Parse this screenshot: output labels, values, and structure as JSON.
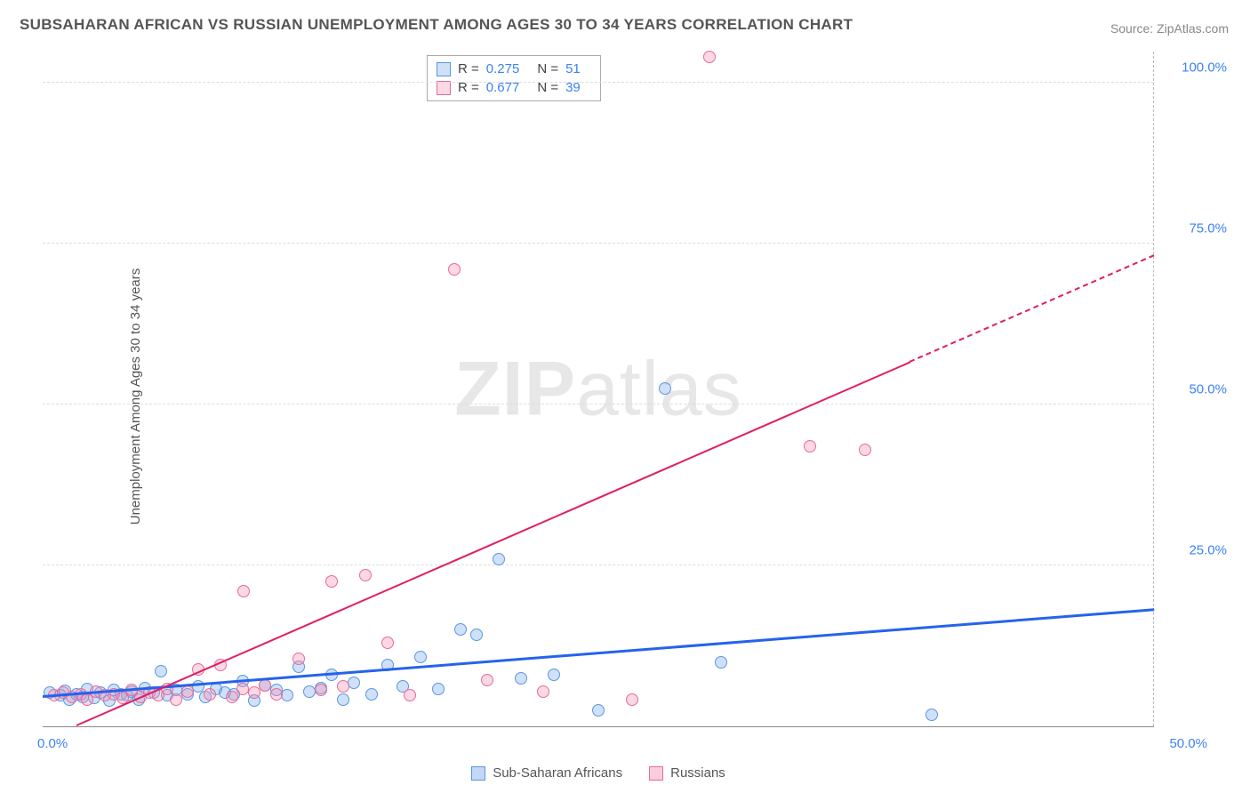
{
  "title": "SUBSAHARAN AFRICAN VS RUSSIAN UNEMPLOYMENT AMONG AGES 30 TO 34 YEARS CORRELATION CHART",
  "source": "Source: ZipAtlas.com",
  "y_axis_label": "Unemployment Among Ages 30 to 34 years",
  "watermark_a": "ZIP",
  "watermark_b": "atlas",
  "chart": {
    "type": "scatter-with-regression",
    "background_color": "#ffffff",
    "grid_color": "#dddddd",
    "axis_label_color": "#3b82f6",
    "xlim": [
      0,
      50
    ],
    "ylim": [
      0,
      105
    ],
    "x_ticks": [
      {
        "value": 0,
        "label": "0.0%"
      },
      {
        "value": 50,
        "label": "50.0%"
      }
    ],
    "y_ticks": [
      {
        "value": 25,
        "label": "25.0%"
      },
      {
        "value": 50,
        "label": "50.0%"
      },
      {
        "value": 75,
        "label": "75.0%"
      },
      {
        "value": 100,
        "label": "100.0%"
      }
    ],
    "series": [
      {
        "name": "Sub-Saharan Africans",
        "color_fill": "rgba(118,169,238,0.35)",
        "color_stroke": "#5a96e0",
        "trend_color": "#2563eb",
        "trend_width": 2.5,
        "trend": {
          "x1": 0,
          "y1": 4.5,
          "x2": 50,
          "y2": 18,
          "dash_from_x": 50
        },
        "marker_radius": 7,
        "R": "0.275",
        "N": "51",
        "points": [
          [
            0.3,
            5.2
          ],
          [
            0.8,
            4.8
          ],
          [
            1.0,
            5.5
          ],
          [
            1.2,
            4.2
          ],
          [
            1.5,
            5.0
          ],
          [
            1.8,
            4.6
          ],
          [
            2.0,
            5.8
          ],
          [
            2.3,
            4.4
          ],
          [
            2.6,
            5.2
          ],
          [
            3.0,
            4.0
          ],
          [
            3.2,
            5.6
          ],
          [
            3.5,
            5.0
          ],
          [
            3.8,
            4.8
          ],
          [
            4.0,
            5.4
          ],
          [
            4.3,
            4.2
          ],
          [
            4.6,
            6.0
          ],
          [
            5.0,
            5.2
          ],
          [
            5.3,
            8.5
          ],
          [
            5.6,
            4.8
          ],
          [
            6.0,
            5.6
          ],
          [
            6.5,
            5.0
          ],
          [
            7.0,
            6.2
          ],
          [
            7.3,
            4.6
          ],
          [
            7.8,
            5.8
          ],
          [
            8.2,
            5.2
          ],
          [
            8.6,
            5.0
          ],
          [
            9.0,
            7.0
          ],
          [
            9.5,
            4.0
          ],
          [
            10.0,
            6.4
          ],
          [
            10.5,
            5.6
          ],
          [
            11.0,
            4.8
          ],
          [
            11.5,
            9.2
          ],
          [
            12.0,
            5.4
          ],
          [
            12.5,
            6.0
          ],
          [
            13.0,
            8.0
          ],
          [
            13.5,
            4.2
          ],
          [
            14.0,
            6.8
          ],
          [
            14.8,
            5.0
          ],
          [
            15.5,
            9.5
          ],
          [
            16.2,
            6.2
          ],
          [
            17.0,
            10.8
          ],
          [
            17.8,
            5.8
          ],
          [
            18.8,
            15.0
          ],
          [
            19.5,
            14.2
          ],
          [
            20.5,
            26.0
          ],
          [
            21.5,
            7.5
          ],
          [
            23.0,
            8.0
          ],
          [
            25.0,
            2.5
          ],
          [
            28.0,
            52.5
          ],
          [
            30.5,
            10.0
          ],
          [
            40.0,
            1.8
          ]
        ]
      },
      {
        "name": "Russians",
        "color_fill": "rgba(244,143,177,0.35)",
        "color_stroke": "#e76b9a",
        "trend_color": "#e11d67",
        "trend_width": 2,
        "trend": {
          "x1": 1.5,
          "y1": 0,
          "x2": 50,
          "y2": 73,
          "dash_from_x": 39
        },
        "marker_radius": 7,
        "R": "0.677",
        "N": "39",
        "points": [
          [
            0.5,
            4.8
          ],
          [
            0.9,
            5.2
          ],
          [
            1.3,
            4.5
          ],
          [
            1.7,
            5.0
          ],
          [
            2.0,
            4.2
          ],
          [
            2.4,
            5.4
          ],
          [
            2.8,
            4.8
          ],
          [
            3.2,
            5.0
          ],
          [
            3.6,
            4.4
          ],
          [
            4.0,
            5.6
          ],
          [
            4.4,
            4.6
          ],
          [
            4.8,
            5.2
          ],
          [
            5.2,
            4.8
          ],
          [
            5.6,
            5.8
          ],
          [
            6.0,
            4.2
          ],
          [
            6.5,
            5.4
          ],
          [
            7.0,
            8.8
          ],
          [
            7.5,
            5.0
          ],
          [
            8.0,
            9.5
          ],
          [
            8.5,
            4.6
          ],
          [
            9.0,
            5.8
          ],
          [
            9.05,
            21.0
          ],
          [
            9.5,
            5.2
          ],
          [
            10.0,
            6.4
          ],
          [
            10.5,
            5.0
          ],
          [
            11.5,
            10.5
          ],
          [
            12.5,
            5.6
          ],
          [
            13.0,
            22.5
          ],
          [
            13.5,
            6.2
          ],
          [
            14.5,
            23.5
          ],
          [
            15.5,
            13.0
          ],
          [
            16.5,
            4.8
          ],
          [
            18.5,
            71.0
          ],
          [
            20.0,
            7.2
          ],
          [
            22.5,
            5.4
          ],
          [
            26.5,
            4.2
          ],
          [
            30.0,
            104.0
          ],
          [
            34.5,
            43.5
          ],
          [
            37.0,
            43.0
          ]
        ]
      }
    ]
  },
  "legend": {
    "items": [
      {
        "label": "Sub-Saharan Africans",
        "fill": "rgba(118,169,238,0.45)",
        "stroke": "#5a96e0"
      },
      {
        "label": "Russians",
        "fill": "rgba(244,143,177,0.45)",
        "stroke": "#e76b9a"
      }
    ]
  },
  "stats_labels": {
    "R": "R =",
    "N": "N ="
  }
}
